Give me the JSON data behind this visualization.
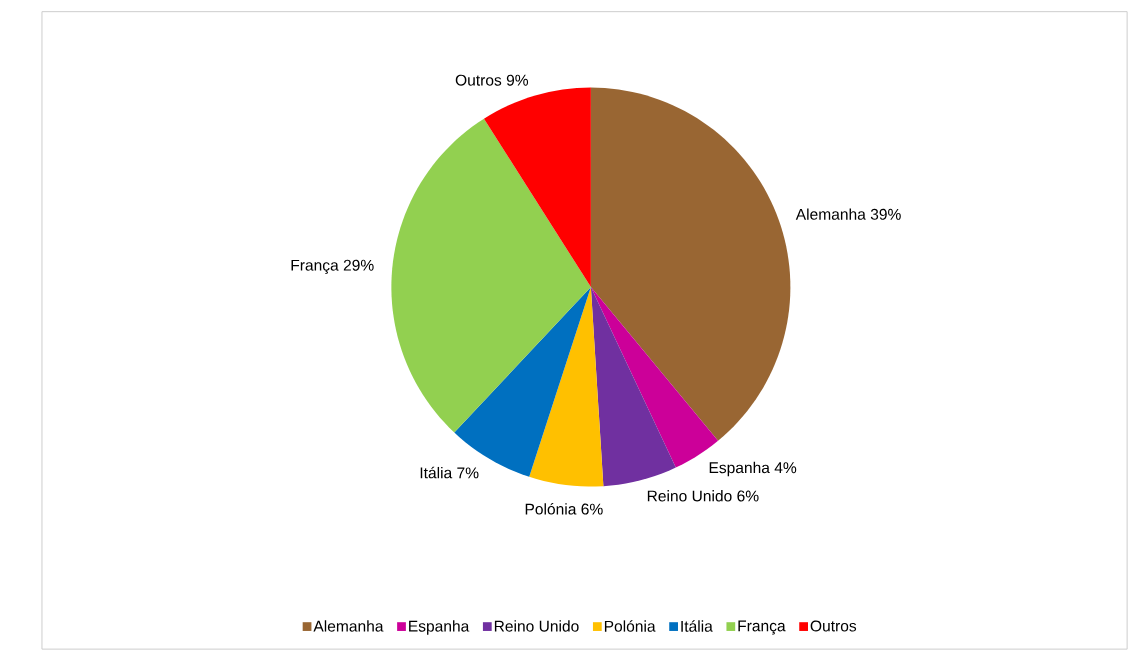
{
  "chart_data": {
    "type": "pie",
    "categories": [
      "Alemanha",
      "Espanha",
      "Reino Unido",
      "Polónia",
      "Itália",
      "França",
      "Outros"
    ],
    "values": [
      39,
      4,
      6,
      6,
      7,
      29,
      9
    ],
    "value_labels": [
      "39%",
      "4%",
      "6%",
      "6%",
      "7%",
      "29%",
      "9%"
    ],
    "colors": [
      "#996633",
      "#cc0099",
      "#7030a0",
      "#ffc000",
      "#0070c0",
      "#92d050",
      "#ff0000"
    ],
    "legend": "bottom"
  }
}
